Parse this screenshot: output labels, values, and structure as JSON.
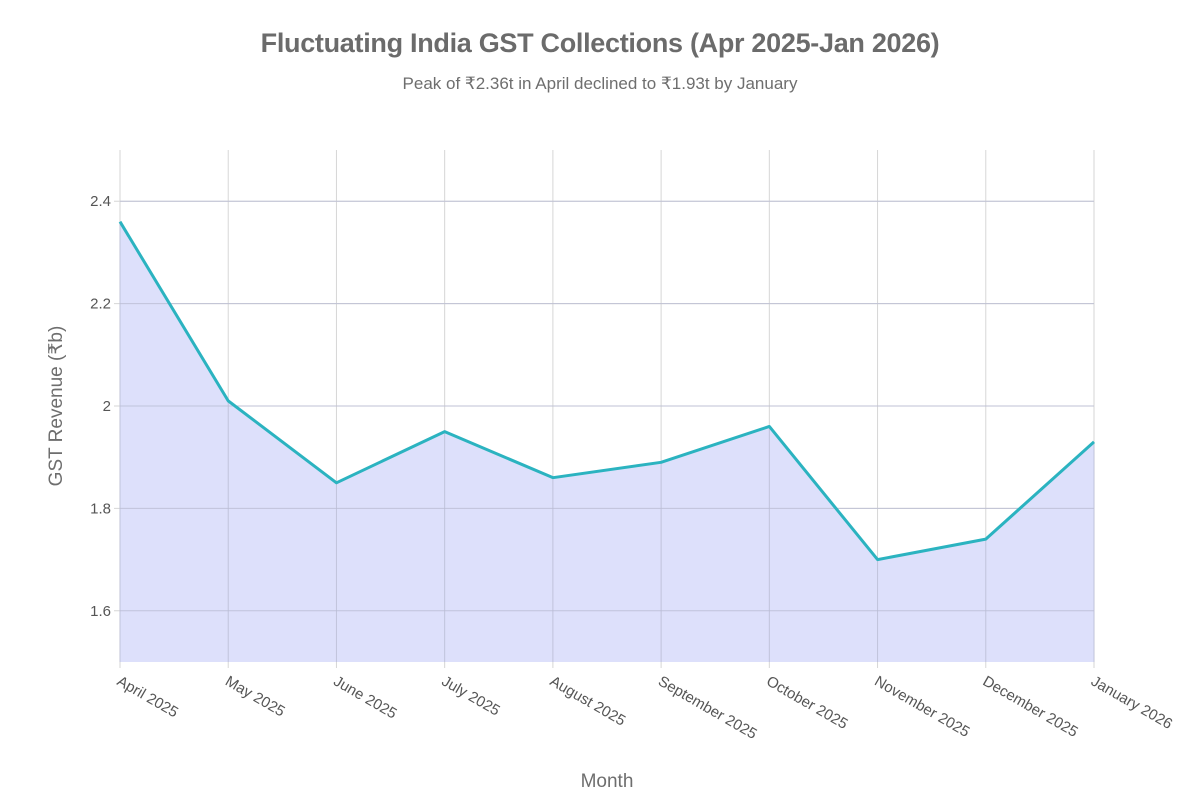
{
  "header": {
    "title": "Fluctuating India GST Collections (Apr 2025-Jan 2026)",
    "subtitle": "Peak of ₹2.36t in April declined to ₹1.93t by January"
  },
  "colors": {
    "line": "#2bb3c0",
    "fill": "#dde0fb",
    "grid": "#cfcfd6",
    "text": "#6e6e6e"
  },
  "chart_data": {
    "type": "area",
    "title": "Fluctuating India GST Collections (Apr 2025-Jan 2026)",
    "subtitle": "Peak of ₹2.36t in April declined to ₹1.93t by January",
    "xlabel": "Month",
    "ylabel": "GST Revenue (₹b)",
    "categories": [
      "April 2025",
      "May 2025",
      "June 2025",
      "July 2025",
      "August 2025",
      "September 2025",
      "October 2025",
      "November 2025",
      "December 2025",
      "January 2026"
    ],
    "series": [
      {
        "name": "GST Revenue",
        "values": [
          2.36,
          2.01,
          1.85,
          1.95,
          1.86,
          1.89,
          1.96,
          1.7,
          1.74,
          1.93
        ]
      }
    ],
    "ylim": [
      1.5,
      2.5
    ],
    "yticks": [
      1.6,
      1.8,
      2.0,
      2.2,
      2.4
    ],
    "ytick_labels": [
      "1.6",
      "1.8",
      "2",
      "2.2",
      "2.4"
    ],
    "grid": true,
    "legend": "none"
  }
}
